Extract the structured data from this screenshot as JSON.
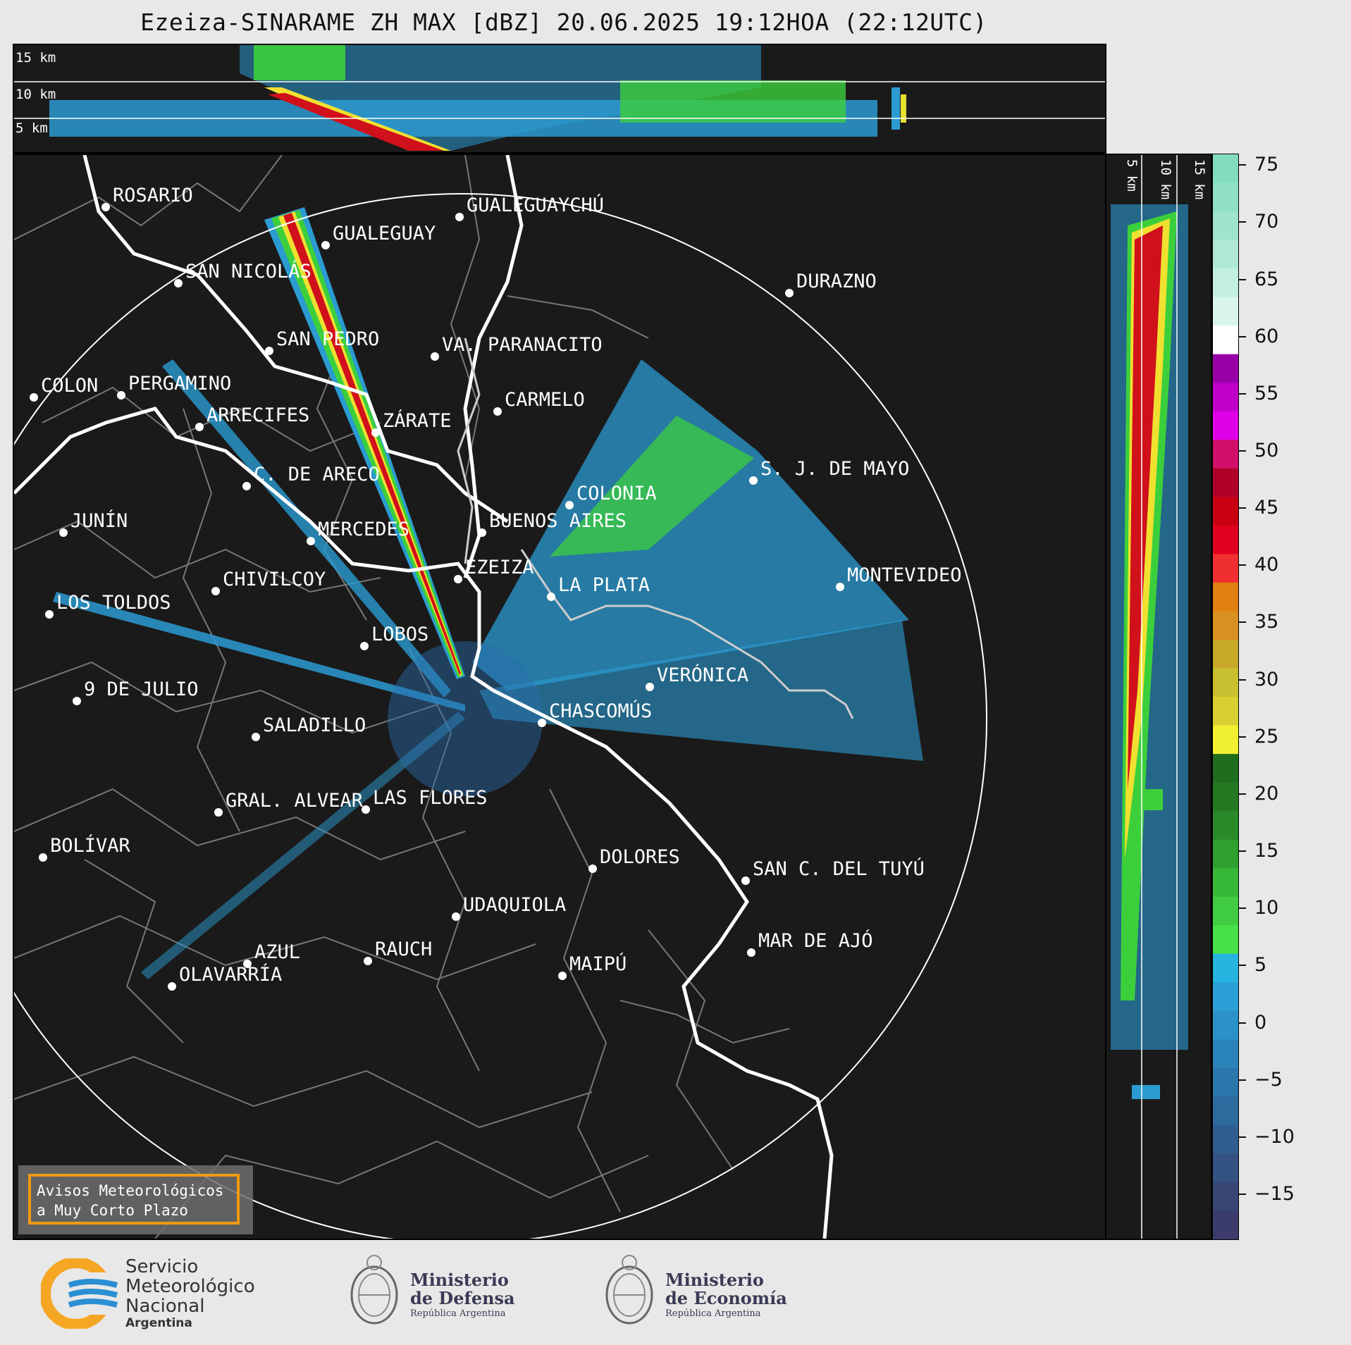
{
  "title": "Ezeiza-SINARAME ZH MAX [dBZ] 20.06.2025 19:12HOA (22:12UTC)",
  "top_panel": {
    "height_labels": [
      "15 km",
      "10 km",
      "5 km"
    ]
  },
  "side_panel": {
    "height_labels": [
      "5 km",
      "10 km",
      "15 km"
    ]
  },
  "colorbar": {
    "unit": "dBZ",
    "ticks": [
      "75",
      "70",
      "65",
      "60",
      "55",
      "50",
      "45",
      "40",
      "35",
      "30",
      "25",
      "20",
      "15",
      "10",
      "5",
      "0",
      "−5",
      "−10",
      "−15"
    ],
    "range": [
      -19,
      76
    ]
  },
  "cities": [
    {
      "name": "ROSARIO"
    },
    {
      "name": "GUALEGUAYCHÚ"
    },
    {
      "name": "GUALEGUAY"
    },
    {
      "name": "SAN NICOLÁS"
    },
    {
      "name": "DURAZNO"
    },
    {
      "name": "SAN PEDRO"
    },
    {
      "name": "VA. PARANACITO"
    },
    {
      "name": "COLON"
    },
    {
      "name": "PERGAMINO"
    },
    {
      "name": "CARMELO"
    },
    {
      "name": "ARRECIFES"
    },
    {
      "name": "ZÁRATE"
    },
    {
      "name": "S. J. DE MAYO"
    },
    {
      "name": "C. DE ARECO"
    },
    {
      "name": "COLONIA"
    },
    {
      "name": "JUNÍN"
    },
    {
      "name": "BUENOS AIRES"
    },
    {
      "name": "MERCEDES"
    },
    {
      "name": "EZEIZA"
    },
    {
      "name": "MONTEVIDEO"
    },
    {
      "name": "CHIVILCOY"
    },
    {
      "name": "LA PLATA"
    },
    {
      "name": "LOS TOLDOS"
    },
    {
      "name": "LOBOS"
    },
    {
      "name": "VERÓNICA"
    },
    {
      "name": "9 DE JULIO"
    },
    {
      "name": "CHASCOMÚS"
    },
    {
      "name": "SALADILLO"
    },
    {
      "name": "GRAL. ALVEAR"
    },
    {
      "name": "LAS FLORES"
    },
    {
      "name": "BOLÍVAR"
    },
    {
      "name": "DOLORES"
    },
    {
      "name": "SAN C. DEL TUYÚ"
    },
    {
      "name": "UDAQUIOLA"
    },
    {
      "name": "MAR DE AJÓ"
    },
    {
      "name": "AZUL"
    },
    {
      "name": "RAUCH"
    },
    {
      "name": "MAIPÚ"
    },
    {
      "name": "OLAVARRÍA"
    }
  ],
  "avisos": {
    "line1": "Avisos Meteorológicos",
    "line2": "a Muy Corto Plazo"
  },
  "logos": {
    "smn": {
      "line1": "Servicio",
      "line2": "Meteorológico",
      "line3": "Nacional",
      "line4": "Argentina"
    },
    "defensa": {
      "line1": "Ministerio",
      "line2": "de Defensa",
      "line3": "República Argentina"
    },
    "economia": {
      "line1": "Ministerio",
      "line2": "de Economía",
      "line3": "República Argentina"
    }
  },
  "colors": {
    "background": "#1a1a1a",
    "coast": "#ffffff",
    "borders": "#7a7a7a",
    "range_ring": "#ffffff",
    "avisos_border": "#f29a0f",
    "smn_blue": "#2a8fd3",
    "smn_orange": "#f5a623"
  }
}
